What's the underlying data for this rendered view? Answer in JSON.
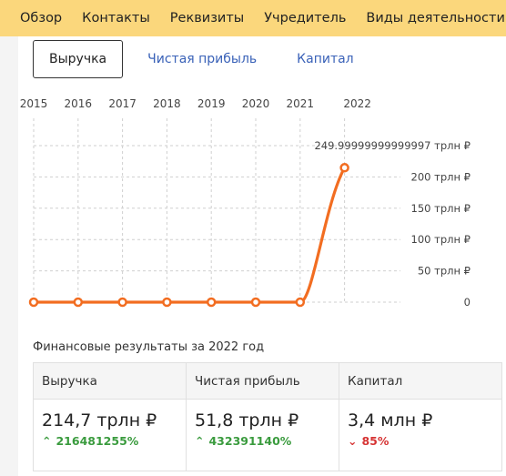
{
  "nav": {
    "items": [
      "Обзор",
      "Контакты",
      "Реквизиты",
      "Учредитель",
      "Виды деятельности"
    ]
  },
  "tabs": [
    {
      "label": "Выручка",
      "active": true
    },
    {
      "label": "Чистая прибыль",
      "active": false
    },
    {
      "label": "Капитал",
      "active": false
    }
  ],
  "chart_data": {
    "type": "line",
    "x": [
      "2015",
      "2016",
      "2017",
      "2018",
      "2019",
      "2020",
      "2021",
      "2022"
    ],
    "values": [
      0,
      0,
      0,
      0,
      0,
      0,
      0,
      214.7
    ],
    "unit": "трлн ₽",
    "ylim": [
      0,
      250
    ],
    "yticks": [
      0,
      50,
      100,
      150,
      200,
      249.99999999999997
    ],
    "ytick_labels": [
      "0",
      "50 трлн ₽",
      "100 трлн ₽",
      "150 трлн ₽",
      "200 трлн ₽",
      "249.99999999999997 трлн ₽"
    ],
    "grid": true,
    "line_color": "#f26d21"
  },
  "finance": {
    "title": "Финансовые результаты за 2022 год",
    "columns": [
      {
        "header": "Выручка",
        "value": "214,7 трлн ₽",
        "change": "216481255%",
        "direction": "up"
      },
      {
        "header": "Чистая прибыль",
        "value": "51,8 трлн ₽",
        "change": "432391140%",
        "direction": "up"
      },
      {
        "header": "Капитал",
        "value": "3,4 млн ₽",
        "change": "85%",
        "direction": "down"
      }
    ]
  }
}
